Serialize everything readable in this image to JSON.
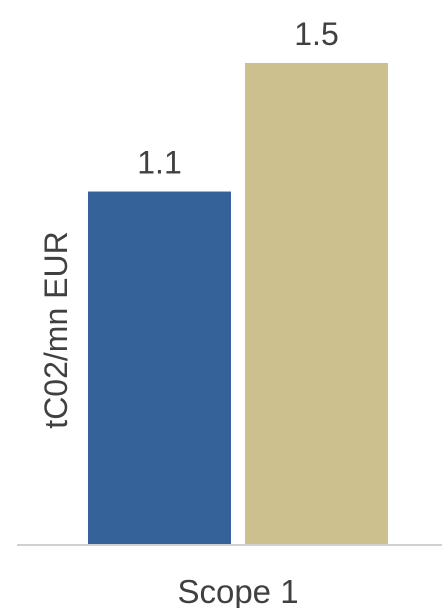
{
  "chart_data": {
    "type": "bar",
    "categories": [
      "Scope 1"
    ],
    "series": [
      {
        "values": [
          1.1
        ],
        "color": "#356299"
      },
      {
        "values": [
          1.5
        ],
        "color": "#cdc08f"
      }
    ],
    "data_labels": [
      "1.1",
      "1.5"
    ],
    "ylabel": "tC02/mn EUR",
    "xlabel": "",
    "ylim": [
      0,
      1.5
    ],
    "grid": false,
    "legend": "none"
  },
  "colors": {
    "baseline": "#d0d0d0",
    "text": "#404040"
  }
}
